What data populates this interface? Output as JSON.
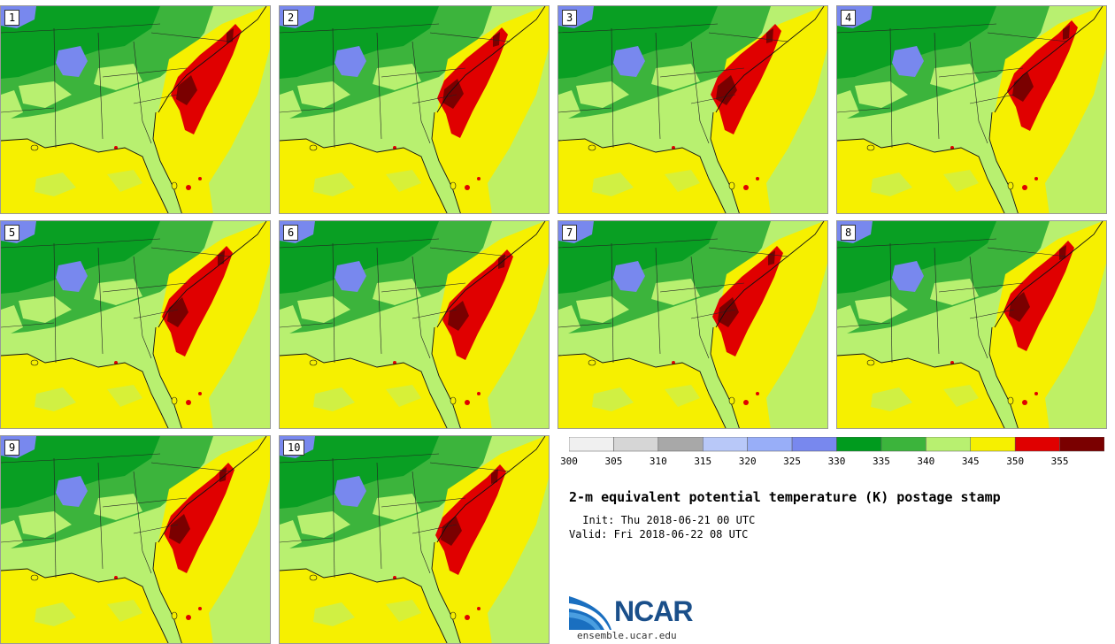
{
  "title": "2-m equivalent potential temperature (K) postage stamp",
  "init": " Init: Thu 2018-06-21 00 UTC",
  "valid": "Valid: Fri 2018-06-22 08 UTC",
  "logo_text": "NCAR",
  "site": "ensemble.ucar.edu",
  "members": [
    "1",
    "2",
    "3",
    "4",
    "5",
    "6",
    "7",
    "8",
    "9",
    "10"
  ],
  "colorbar": {
    "ticks": [
      "300",
      "305",
      "310",
      "315",
      "320",
      "325",
      "330",
      "335",
      "340",
      "345",
      "350",
      "355"
    ],
    "colors": [
      "#f0f0f0",
      "#d6d6d6",
      "#a8a8a8",
      "#b8c8f8",
      "#98aef8",
      "#7888ee",
      "#009b1e",
      "#3cb43c",
      "#b8f070",
      "#f6f000",
      "#e00000",
      "#7a0000"
    ]
  },
  "colors": {
    "blue": "#7888ee",
    "dark_green": "#009b1e",
    "green": "#3cb43c",
    "light_green": "#b8f070",
    "yellow": "#f6f000",
    "red": "#e00000",
    "dark_red": "#7a0000"
  }
}
